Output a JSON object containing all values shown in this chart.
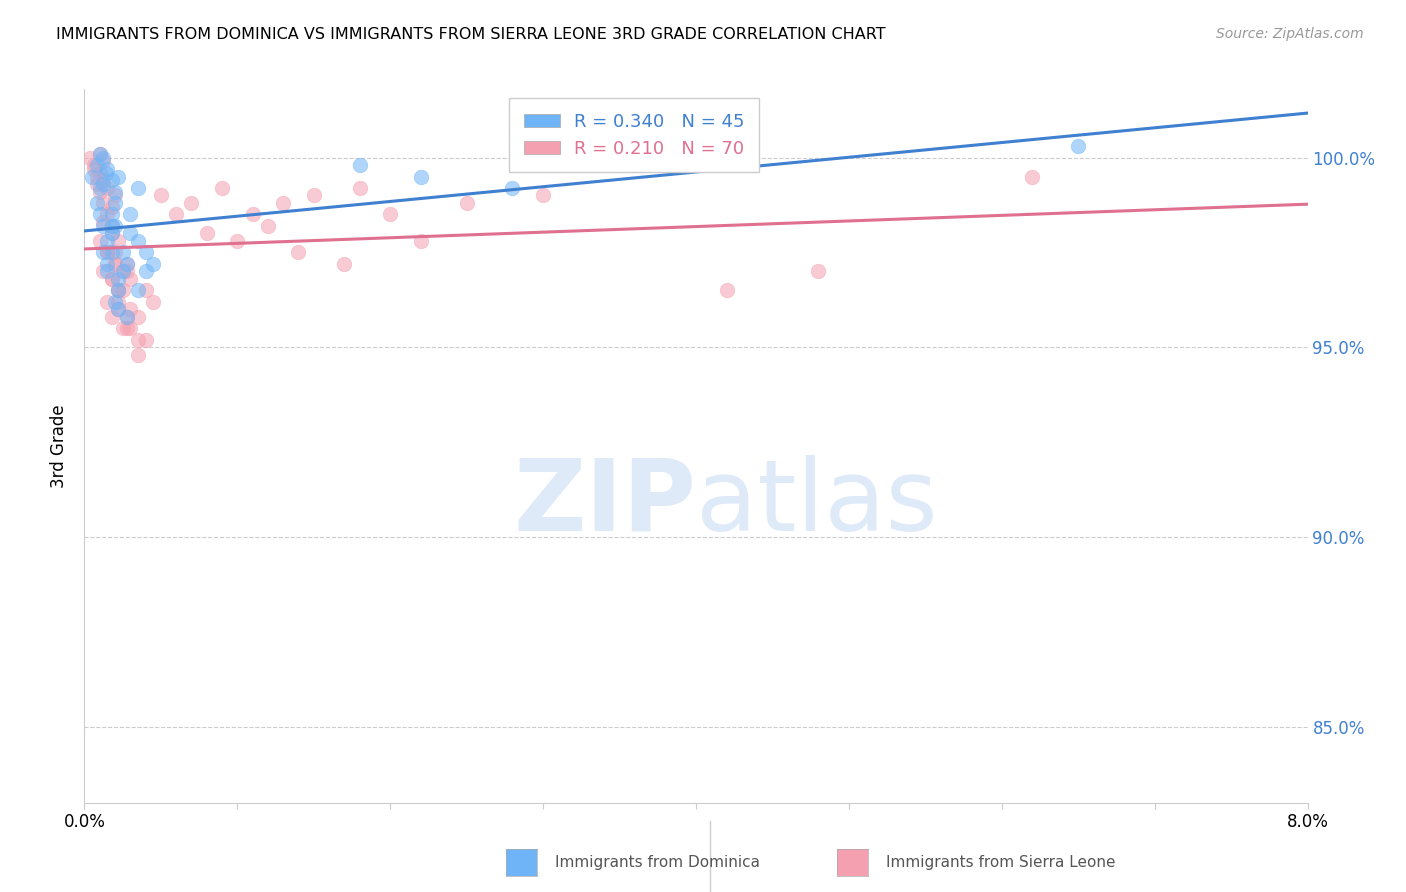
{
  "title": "IMMIGRANTS FROM DOMINICA VS IMMIGRANTS FROM SIERRA LEONE 3RD GRADE CORRELATION CHART",
  "source": "Source: ZipAtlas.com",
  "ylabel": "3rd Grade",
  "xmin": 0.0,
  "xmax": 8.0,
  "ymin": 83.0,
  "ymax": 101.8,
  "yticks": [
    85.0,
    90.0,
    95.0,
    100.0
  ],
  "ytick_labels": [
    "85.0%",
    "90.0%",
    "95.0%",
    "100.0%"
  ],
  "blue_color": "#6EB4F7",
  "pink_color": "#F4A0B0",
  "blue_line_color": "#4080D0",
  "pink_line_color": "#E07090",
  "r_blue": 0.34,
  "n_blue": 45,
  "r_pink": 0.21,
  "n_pink": 70,
  "blue_scatter_x": [
    0.05,
    0.08,
    0.1,
    0.12,
    0.14,
    0.08,
    0.1,
    0.12,
    0.15,
    0.18,
    0.1,
    0.12,
    0.15,
    0.18,
    0.2,
    0.12,
    0.15,
    0.18,
    0.2,
    0.22,
    0.15,
    0.18,
    0.2,
    0.22,
    0.25,
    0.18,
    0.22,
    0.28,
    0.3,
    0.35,
    0.2,
    0.25,
    0.3,
    0.35,
    0.4,
    0.22,
    0.28,
    0.35,
    0.4,
    0.45,
    1.8,
    2.2,
    2.8,
    3.5,
    6.5
  ],
  "blue_scatter_y": [
    99.5,
    99.8,
    100.1,
    99.3,
    99.6,
    98.8,
    99.2,
    100.0,
    99.7,
    99.4,
    98.5,
    98.2,
    97.8,
    98.0,
    99.1,
    97.5,
    97.2,
    98.5,
    98.8,
    99.5,
    97.0,
    97.5,
    98.2,
    96.8,
    97.5,
    98.2,
    96.5,
    97.2,
    98.0,
    99.2,
    96.2,
    97.0,
    98.5,
    97.8,
    97.0,
    96.0,
    95.8,
    96.5,
    97.5,
    97.2,
    99.8,
    99.5,
    99.2,
    99.8,
    100.3
  ],
  "pink_scatter_x": [
    0.04,
    0.06,
    0.08,
    0.1,
    0.06,
    0.08,
    0.1,
    0.12,
    0.1,
    0.12,
    0.12,
    0.15,
    0.15,
    0.18,
    0.18,
    0.2,
    0.1,
    0.12,
    0.15,
    0.18,
    0.2,
    0.22,
    0.12,
    0.15,
    0.18,
    0.2,
    0.22,
    0.25,
    0.15,
    0.18,
    0.2,
    0.22,
    0.25,
    0.28,
    0.18,
    0.22,
    0.28,
    0.3,
    0.22,
    0.28,
    0.3,
    0.35,
    0.25,
    0.3,
    0.35,
    0.4,
    0.28,
    0.35,
    0.4,
    0.45,
    0.5,
    0.7,
    0.9,
    1.1,
    1.3,
    1.5,
    1.8,
    2.0,
    2.2,
    0.6,
    0.8,
    1.0,
    1.2,
    1.4,
    1.7,
    2.5,
    3.0,
    4.2,
    4.8,
    6.2
  ],
  "pink_scatter_y": [
    100.0,
    99.8,
    99.5,
    100.1,
    99.7,
    99.3,
    99.6,
    99.9,
    99.1,
    99.4,
    98.8,
    99.2,
    98.5,
    98.2,
    98.7,
    99.0,
    97.8,
    98.3,
    97.5,
    98.0,
    97.2,
    97.8,
    97.0,
    97.5,
    96.8,
    97.2,
    96.5,
    97.0,
    96.2,
    96.8,
    97.5,
    96.0,
    96.5,
    97.2,
    95.8,
    96.5,
    97.0,
    95.5,
    96.2,
    95.8,
    96.8,
    95.2,
    95.5,
    96.0,
    95.8,
    96.5,
    95.5,
    94.8,
    95.2,
    96.2,
    99.0,
    98.8,
    99.2,
    98.5,
    98.8,
    99.0,
    99.2,
    98.5,
    97.8,
    98.5,
    98.0,
    97.8,
    98.2,
    97.5,
    97.2,
    98.8,
    99.0,
    96.5,
    97.0,
    99.5
  ],
  "footer_label1": "Immigrants from Dominica",
  "footer_label2": "Immigrants from Sierra Leone"
}
